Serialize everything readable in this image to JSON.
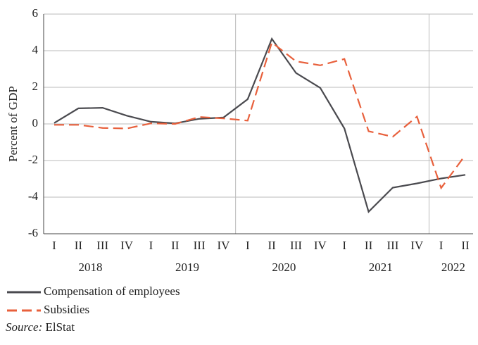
{
  "chart_data": {
    "type": "line",
    "y_label": "Percent of GDP",
    "categories": [
      "I",
      "II",
      "III",
      "IV",
      "I",
      "II",
      "III",
      "IV",
      "I",
      "II",
      "III",
      "IV",
      "I",
      "II",
      "III",
      "IV",
      "I",
      "II"
    ],
    "years": [
      "2018",
      "2019",
      "2020",
      "2021",
      "2022"
    ],
    "series": [
      {
        "name": "Compensation of employees",
        "color": "#4a4a4f",
        "dash": false,
        "values": [
          0.05,
          0.85,
          0.88,
          0.45,
          0.12,
          0.03,
          0.28,
          0.35,
          1.35,
          4.65,
          2.78,
          1.97,
          -0.25,
          -4.8,
          -3.48,
          -3.25,
          -2.98,
          -2.78
        ]
      },
      {
        "name": "Subsidies",
        "color": "#e8603c",
        "dash": true,
        "values": [
          -0.05,
          -0.05,
          -0.22,
          -0.25,
          0.03,
          0.0,
          0.38,
          0.3,
          0.18,
          4.45,
          3.42,
          3.2,
          3.55,
          -0.4,
          -0.7,
          0.4,
          -3.5,
          -1.7
        ]
      }
    ],
    "ylim": [
      -6,
      6
    ],
    "yticks": [
      -6,
      -4,
      -2,
      0,
      2,
      4,
      6
    ],
    "grid": true,
    "source_label": "Source:",
    "source": "ElStat"
  }
}
